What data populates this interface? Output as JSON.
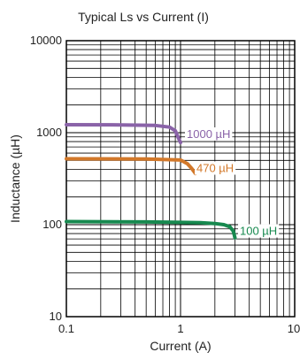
{
  "chart_data": {
    "type": "line",
    "title": "Typical Ls vs Current (I)",
    "xlabel": "Current (A)",
    "ylabel": "Inductance (µH)",
    "x_scale": "log",
    "y_scale": "log",
    "xlim": [
      0.1,
      10
    ],
    "ylim": [
      10,
      10000
    ],
    "x_ticks": [
      "0.1",
      "1",
      "10"
    ],
    "y_ticks": [
      "10",
      "100",
      "1000",
      "10000"
    ],
    "grid": true,
    "series": [
      {
        "name": "1000 µH",
        "color": "#8a63a8",
        "x": [
          0.1,
          0.3,
          0.6,
          0.8,
          0.9,
          0.95,
          1.0
        ],
        "y": [
          1220,
          1215,
          1200,
          1150,
          1050,
          900,
          780
        ]
      },
      {
        "name": "470 µH",
        "color": "#d2782a",
        "x": [
          0.1,
          0.5,
          1.0,
          1.15,
          1.25,
          1.35
        ],
        "y": [
          520,
          518,
          505,
          460,
          410,
          360
        ]
      },
      {
        "name": "100 µH",
        "color": "#17894f",
        "x": [
          0.1,
          0.5,
          1.0,
          1.5,
          2.0,
          2.4,
          2.7,
          2.9,
          3.0
        ],
        "y": [
          108,
          107,
          106,
          105,
          103,
          100,
          95,
          85,
          72
        ]
      }
    ]
  }
}
